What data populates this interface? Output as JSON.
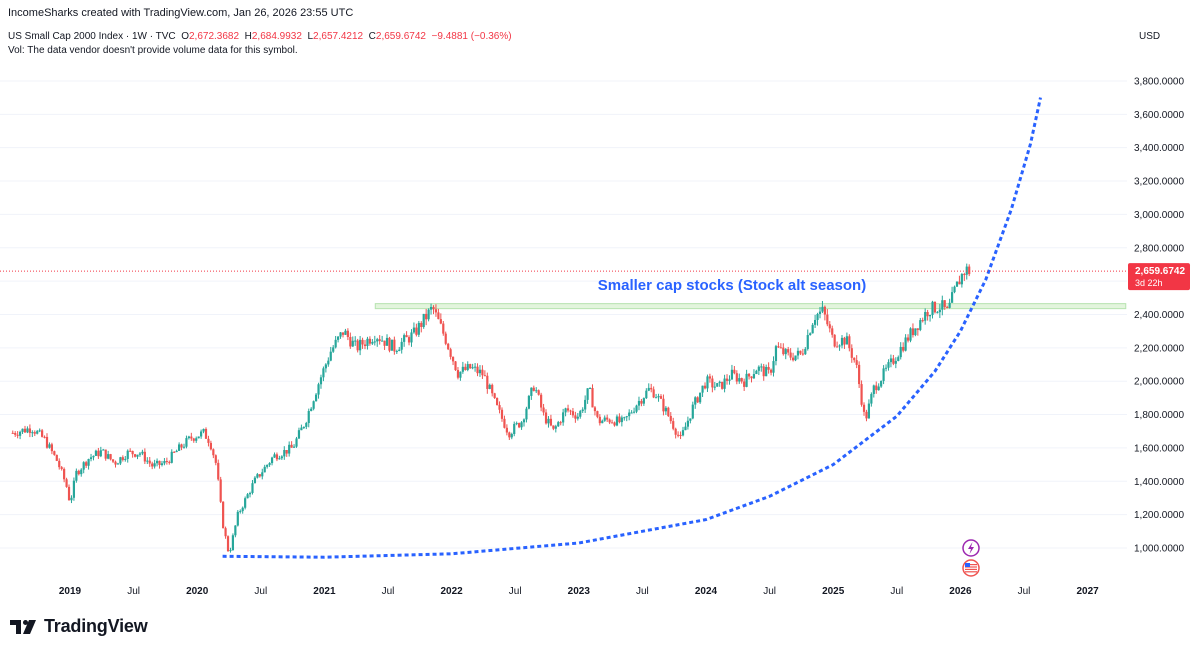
{
  "header": {
    "credit": "IncomeSharks created with TradingView.com, Jan 26, 2026 23:55 UTC",
    "symbol": "US Small Cap 2000 Index · 1W · TVC",
    "open_label": "O",
    "open": "2,672.3682",
    "high_label": "H",
    "high": "2,684.9932",
    "low_label": "L",
    "low": "2,657.4212",
    "close_label": "C",
    "close": "2,659.6742",
    "change": "−9.4881 (−0.36%)",
    "volume_note": "Vol: The data vendor doesn't provide volume data for this symbol."
  },
  "currency": "USD",
  "brand": {
    "name": "TradingView",
    "icon": "tradingview-logo-icon"
  },
  "price_tag": {
    "value": "2,659.6742",
    "countdown": "3d 22h"
  },
  "annotation": {
    "text": "Smaller cap stocks (Stock alt season)"
  },
  "icons": {
    "flash": "lightning-icon",
    "flag": "us-flag-icon"
  },
  "colors": {
    "up": "#26a69a",
    "down": "#ef5350",
    "curve": "#2962ff",
    "resistance": "#b7e3b0",
    "price_line": "#f23645",
    "annotation": "#2962ff"
  },
  "chart_data": {
    "type": "candlestick",
    "interval": "1W",
    "y_axis": {
      "unit": "USD",
      "ticks": [
        1000,
        1200,
        1400,
        1600,
        1800,
        2000,
        2200,
        2400,
        2600,
        2800,
        3000,
        3200,
        3400,
        3600,
        3800
      ],
      "tick_labels": [
        "1,000.0000",
        "1,200.0000",
        "1,400.0000",
        "1,600.0000",
        "1,800.0000",
        "2,000.0000",
        "2,200.0000",
        "2,400.0000",
        "2,600.0000",
        "2,800.0000",
        "3,000.0000",
        "3,200.0000",
        "3,400.0000",
        "3,600.0000",
        "3,800.0000"
      ]
    },
    "x_axis": {
      "labels": [
        {
          "t": 2019.0,
          "label": "2019",
          "year": true
        },
        {
          "t": 2019.5,
          "label": "Jul",
          "year": false
        },
        {
          "t": 2020.0,
          "label": "2020",
          "year": true
        },
        {
          "t": 2020.5,
          "label": "Jul",
          "year": false
        },
        {
          "t": 2021.0,
          "label": "2021",
          "year": true
        },
        {
          "t": 2021.5,
          "label": "Jul",
          "year": false
        },
        {
          "t": 2022.0,
          "label": "2022",
          "year": true
        },
        {
          "t": 2022.5,
          "label": "Jul",
          "year": false
        },
        {
          "t": 2023.0,
          "label": "2023",
          "year": true
        },
        {
          "t": 2023.5,
          "label": "Jul",
          "year": false
        },
        {
          "t": 2024.0,
          "label": "2024",
          "year": true
        },
        {
          "t": 2024.5,
          "label": "Jul",
          "year": false
        },
        {
          "t": 2025.0,
          "label": "2025",
          "year": true
        },
        {
          "t": 2025.5,
          "label": "Jul",
          "year": false
        },
        {
          "t": 2026.0,
          "label": "2026",
          "year": true
        },
        {
          "t": 2026.5,
          "label": "Jul",
          "year": false
        },
        {
          "t": 2027.0,
          "label": "2027",
          "year": true
        }
      ]
    },
    "price_path": [
      [
        2018.55,
        1690
      ],
      [
        2018.7,
        1720
      ],
      [
        2018.8,
        1650
      ],
      [
        2018.9,
        1520
      ],
      [
        2018.97,
        1380
      ],
      [
        2019.0,
        1270
      ],
      [
        2019.05,
        1450
      ],
      [
        2019.15,
        1540
      ],
      [
        2019.25,
        1580
      ],
      [
        2019.35,
        1510
      ],
      [
        2019.45,
        1570
      ],
      [
        2019.55,
        1570
      ],
      [
        2019.65,
        1490
      ],
      [
        2019.75,
        1510
      ],
      [
        2019.85,
        1590
      ],
      [
        2019.95,
        1660
      ],
      [
        2020.05,
        1690
      ],
      [
        2020.1,
        1640
      ],
      [
        2020.15,
        1500
      ],
      [
        2020.2,
        1150
      ],
      [
        2020.25,
        960
      ],
      [
        2020.32,
        1200
      ],
      [
        2020.45,
        1400
      ],
      [
        2020.6,
        1550
      ],
      [
        2020.75,
        1600
      ],
      [
        2020.85,
        1760
      ],
      [
        2020.95,
        1980
      ],
      [
        2021.05,
        2180
      ],
      [
        2021.15,
        2300
      ],
      [
        2021.25,
        2200
      ],
      [
        2021.4,
        2280
      ],
      [
        2021.55,
        2200
      ],
      [
        2021.7,
        2280
      ],
      [
        2021.85,
        2440
      ],
      [
        2021.95,
        2260
      ],
      [
        2022.05,
        2050
      ],
      [
        2022.15,
        2080
      ],
      [
        2022.25,
        2040
      ],
      [
        2022.35,
        1850
      ],
      [
        2022.45,
        1690
      ],
      [
        2022.55,
        1760
      ],
      [
        2022.65,
        1980
      ],
      [
        2022.72,
        1800
      ],
      [
        2022.8,
        1700
      ],
      [
        2022.9,
        1830
      ],
      [
        2023.0,
        1790
      ],
      [
        2023.08,
        1950
      ],
      [
        2023.15,
        1760
      ],
      [
        2023.25,
        1770
      ],
      [
        2023.35,
        1750
      ],
      [
        2023.45,
        1860
      ],
      [
        2023.55,
        1950
      ],
      [
        2023.6,
        1930
      ],
      [
        2023.7,
        1800
      ],
      [
        2023.8,
        1650
      ],
      [
        2023.9,
        1850
      ],
      [
        2024.0,
        2000
      ],
      [
        2024.1,
        1960
      ],
      [
        2024.2,
        2040
      ],
      [
        2024.3,
        2000
      ],
      [
        2024.4,
        2080
      ],
      [
        2024.5,
        2040
      ],
      [
        2024.55,
        2200
      ],
      [
        2024.65,
        2150
      ],
      [
        2024.75,
        2160
      ],
      [
        2024.85,
        2390
      ],
      [
        2024.92,
        2420
      ],
      [
        2025.0,
        2240
      ],
      [
        2025.1,
        2250
      ],
      [
        2025.18,
        2100
      ],
      [
        2025.25,
        1760
      ],
      [
        2025.32,
        1960
      ],
      [
        2025.45,
        2100
      ],
      [
        2025.55,
        2220
      ],
      [
        2025.65,
        2330
      ],
      [
        2025.75,
        2430
      ],
      [
        2025.85,
        2450
      ],
      [
        2025.9,
        2410
      ],
      [
        2025.95,
        2530
      ],
      [
        2026.0,
        2620
      ],
      [
        2026.04,
        2672
      ],
      [
        2026.07,
        2659.67
      ]
    ],
    "resistance_level": 2450,
    "resistance_span": [
      2021.4,
      2027.3
    ],
    "curve_points": [
      [
        2020.2,
        950
      ],
      [
        2021.0,
        945
      ],
      [
        2022.0,
        965
      ],
      [
        2023.0,
        1030
      ],
      [
        2024.0,
        1170
      ],
      [
        2024.5,
        1310
      ],
      [
        2025.0,
        1500
      ],
      [
        2025.5,
        1790
      ],
      [
        2025.8,
        2060
      ],
      [
        2026.0,
        2300
      ],
      [
        2026.2,
        2610
      ],
      [
        2026.4,
        3030
      ],
      [
        2026.55,
        3420
      ],
      [
        2026.63,
        3700
      ]
    ],
    "last_price": 2659.6742
  }
}
